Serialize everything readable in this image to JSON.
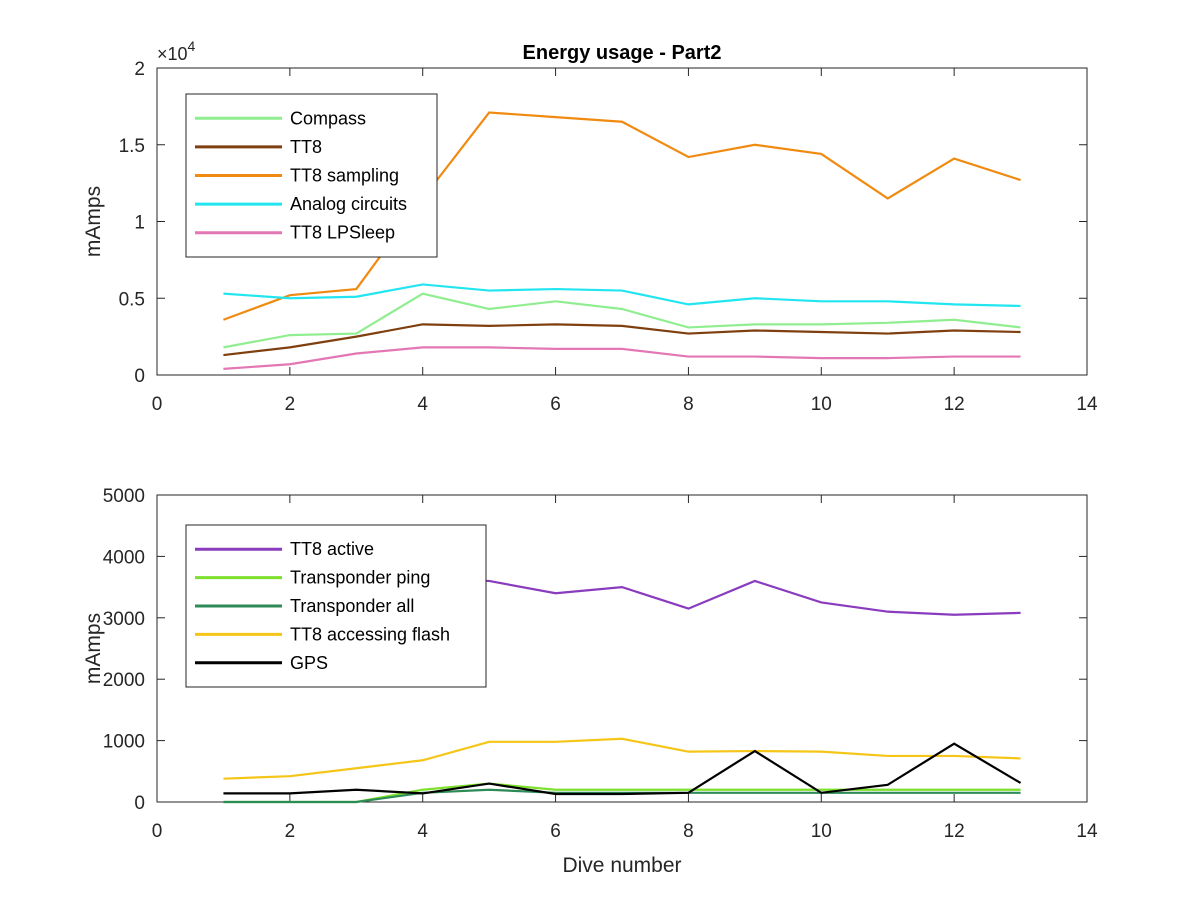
{
  "figure": {
    "title": "Energy usage - Part2",
    "xlabel": "Dive number"
  },
  "chart_data": [
    {
      "type": "line",
      "title": "Energy usage - Part2",
      "xlabel": "",
      "ylabel": "mAmps",
      "y_exponent_label": "×10",
      "y_exponent_power": "4",
      "xlim": [
        0,
        14
      ],
      "ylim": [
        0,
        20000
      ],
      "xticks": [
        0,
        2,
        4,
        6,
        8,
        10,
        12,
        14
      ],
      "yticks": [
        0,
        5000,
        10000,
        15000,
        20000
      ],
      "ytick_labels": [
        "0",
        "0.5",
        "1",
        "1.5",
        "2"
      ],
      "legend_position": "top-left",
      "grid": false,
      "x": [
        1,
        2,
        3,
        4,
        5,
        6,
        7,
        8,
        9,
        10,
        11,
        12,
        13
      ],
      "series": [
        {
          "name": "Compass",
          "color": "#90ee90",
          "values": [
            1800,
            2600,
            2700,
            5300,
            4300,
            4800,
            4300,
            3100,
            3300,
            3300,
            3400,
            3600,
            3100
          ]
        },
        {
          "name": "TT8",
          "color": "#7f3f0f",
          "values": [
            1300,
            1800,
            2500,
            3300,
            3200,
            3300,
            3200,
            2700,
            2900,
            2800,
            2700,
            2900,
            2800
          ]
        },
        {
          "name": "TT8 sampling",
          "color": "#f08a10",
          "values": [
            3600,
            5200,
            5600,
            11500,
            17100,
            16800,
            16500,
            14200,
            15000,
            14400,
            11500,
            14100,
            12700
          ]
        },
        {
          "name": "Analog circuits",
          "color": "#22e5f0",
          "values": [
            5300,
            5000,
            5100,
            5900,
            5500,
            5600,
            5500,
            4600,
            5000,
            4800,
            4800,
            4600,
            4500
          ]
        },
        {
          "name": "TT8 LPSleep",
          "color": "#e377b4",
          "values": [
            400,
            700,
            1400,
            1800,
            1800,
            1700,
            1700,
            1200,
            1200,
            1100,
            1100,
            1200,
            1200
          ]
        }
      ]
    },
    {
      "type": "line",
      "title": "",
      "xlabel": "Dive number",
      "ylabel": "mAmps",
      "xlim": [
        0,
        14
      ],
      "ylim": [
        0,
        5000
      ],
      "xticks": [
        0,
        2,
        4,
        6,
        8,
        10,
        12,
        14
      ],
      "yticks": [
        0,
        1000,
        2000,
        3000,
        4000,
        5000
      ],
      "ytick_labels": [
        "0",
        "1000",
        "2000",
        "3000",
        "4000",
        "5000"
      ],
      "legend_position": "top-left",
      "grid": false,
      "x": [
        1,
        2,
        3,
        4,
        5,
        6,
        7,
        8,
        9,
        10,
        11,
        12,
        13
      ],
      "series": [
        {
          "name": "TT8 active",
          "color": "#8a3cbe",
          "values": [
            3000,
            3300,
            3500,
            3600,
            3600,
            3400,
            3500,
            3150,
            3600,
            3250,
            3100,
            3050,
            3080
          ]
        },
        {
          "name": "Transponder ping",
          "color": "#7ce02c",
          "values": [
            0,
            0,
            0,
            200,
            300,
            200,
            200,
            200,
            200,
            200,
            200,
            200,
            200
          ]
        },
        {
          "name": "Transponder all",
          "color": "#2e8b57",
          "values": [
            0,
            0,
            0,
            150,
            200,
            150,
            150,
            150,
            150,
            150,
            150,
            150,
            150
          ]
        },
        {
          "name": "TT8 accessing flash",
          "color": "#f5c518",
          "values": [
            380,
            420,
            550,
            680,
            980,
            980,
            1030,
            820,
            830,
            820,
            750,
            750,
            710
          ]
        },
        {
          "name": "GPS",
          "color": "#000000",
          "values": [
            140,
            140,
            200,
            140,
            300,
            130,
            130,
            150,
            830,
            150,
            280,
            950,
            310
          ]
        }
      ]
    }
  ]
}
